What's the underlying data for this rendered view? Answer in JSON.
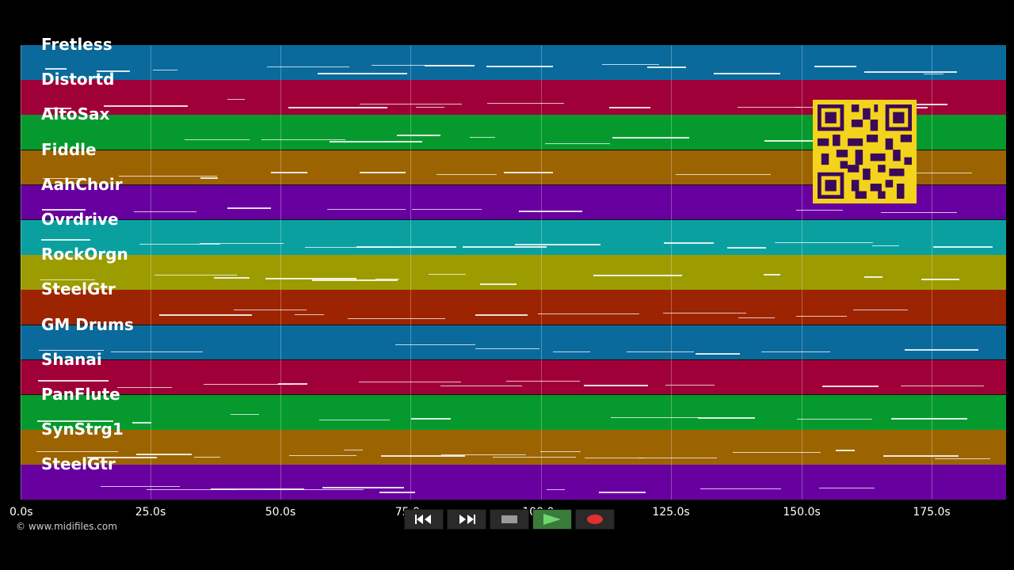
{
  "tracks": [
    {
      "name": "Fretless",
      "color": "#0a6a9c"
    },
    {
      "name": "Distortd",
      "color": "#a00038"
    },
    {
      "name": "AltoSax",
      "color": "#069a2e"
    },
    {
      "name": "Fiddle",
      "color": "#9c6400"
    },
    {
      "name": "AahChoir",
      "color": "#6800a0"
    },
    {
      "name": "Ovrdrive",
      "color": "#0aa0a0"
    },
    {
      "name": "RockOrgn",
      "color": "#9c9c00"
    },
    {
      "name": "SteelGtr",
      "color": "#9c2400"
    },
    {
      "name": "GM Drums",
      "color": "#0a6a9c"
    },
    {
      "name": "Shanai",
      "color": "#a00038"
    },
    {
      "name": "PanFlute",
      "color": "#069a2e"
    },
    {
      "name": "SynStrg1",
      "color": "#9c6400"
    },
    {
      "name": "SteelGtr",
      "color": "#6800a0"
    }
  ],
  "timeline": {
    "ticks": [
      "0.0s",
      "25.0s",
      "50.0s",
      "75.0s",
      "100.0s",
      "125.0s",
      "150.0s",
      "175.0s"
    ]
  },
  "copyright": "© www.midifiles.com",
  "transport": {
    "rewind_icon": "rewind-icon",
    "forward_icon": "fast-forward-icon",
    "stop_icon": "stop-icon",
    "play_icon": "play-icon",
    "record_icon": "record-icon"
  },
  "qr_icon": "qr-code-icon"
}
